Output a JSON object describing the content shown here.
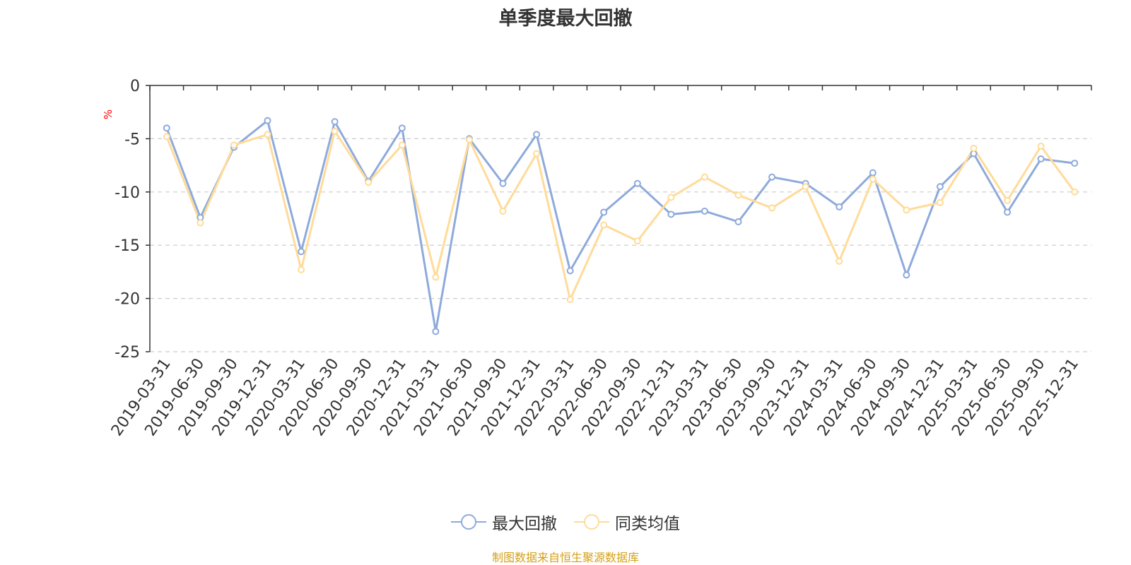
{
  "chart_data": {
    "type": "line",
    "title": "单季度最大回撤",
    "ylabel": "%",
    "xlabel": "",
    "ylim": [
      -25,
      0
    ],
    "yticks": [
      0,
      -5,
      -10,
      -15,
      -20,
      -25
    ],
    "grid": true,
    "legend_position": "bottom-center",
    "categories": [
      "2019-03-31",
      "2019-06-30",
      "2019-09-30",
      "2019-12-31",
      "2020-03-31",
      "2020-06-30",
      "2020-09-30",
      "2020-12-31",
      "2021-03-31",
      "2021-06-30",
      "2021-09-30",
      "2021-12-31",
      "2022-03-31",
      "2022-06-30",
      "2022-09-30",
      "2022-12-31",
      "2023-03-31",
      "2023-06-30",
      "2023-09-30",
      "2023-12-31",
      "2024-03-31",
      "2024-06-30",
      "2024-09-30",
      "2024-12-31",
      "2025-03-31",
      "2025-06-30",
      "2025-09-30",
      "2025-12-31"
    ],
    "series": [
      {
        "name": "最大回撤",
        "color": "#8eaadb",
        "values": [
          -4.0,
          -12.4,
          -5.8,
          -3.3,
          -15.6,
          -3.4,
          -9.0,
          -4.0,
          -23.1,
          -5.0,
          -9.2,
          -4.6,
          -17.4,
          -11.9,
          -9.2,
          -12.1,
          -11.8,
          -12.8,
          -8.6,
          -9.2,
          -11.4,
          -8.2,
          -17.8,
          -9.5,
          -6.4,
          -11.9,
          -6.9,
          -7.3
        ]
      },
      {
        "name": "同类均值",
        "color": "#ffdb99",
        "values": [
          -4.8,
          -12.9,
          -5.6,
          -4.6,
          -17.3,
          -4.3,
          -9.1,
          -5.6,
          -18.0,
          -5.1,
          -11.8,
          -6.4,
          -20.1,
          -13.1,
          -14.6,
          -10.5,
          -8.6,
          -10.3,
          -11.5,
          -9.5,
          -16.5,
          -8.8,
          -11.7,
          -11.0,
          -5.9,
          -10.8,
          -5.7,
          -10.0
        ]
      }
    ]
  },
  "source_note": "制图数据来自恒生聚源数据库",
  "colors": {
    "axis": "#333333",
    "grid": "#cccccc",
    "text": "#333333",
    "ylabel": "#ff0000",
    "source_note": "#d4a017"
  }
}
